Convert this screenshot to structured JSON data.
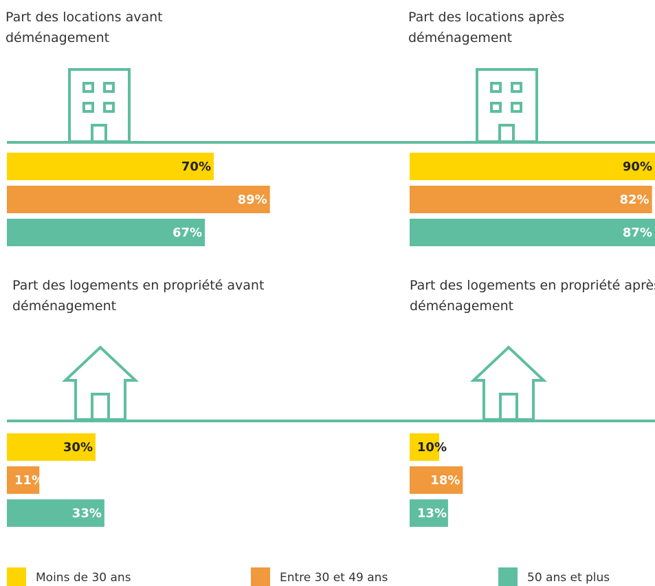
{
  "chart_data": [
    {
      "type": "bar",
      "title": "Part des locations avant déménagement",
      "values": [
        70,
        89,
        67
      ],
      "value_labels": [
        "70%",
        "89%",
        "67%"
      ],
      "xlim": [
        0,
        100
      ]
    },
    {
      "type": "bar",
      "title": "Part des locations après déménagement",
      "values": [
        90,
        82,
        87
      ],
      "value_labels": [
        "90%",
        "82%",
        "87%"
      ],
      "xlim": [
        0,
        100
      ]
    },
    {
      "type": "bar",
      "title": "Part des logements en propriété avant déménagement",
      "values": [
        30,
        11,
        33
      ],
      "value_labels": [
        "30%",
        "11%",
        "33%"
      ],
      "xlim": [
        0,
        100
      ]
    },
    {
      "type": "bar",
      "title": "Part des logements en propriété après déménagement",
      "values": [
        10,
        18,
        13
      ],
      "value_labels": [
        "10%",
        "18%",
        "13%"
      ],
      "xlim": [
        0,
        100
      ]
    }
  ],
  "legend": {
    "series": [
      {
        "name": "Moins de 30 ans",
        "color": "#ffd500"
      },
      {
        "name": "Entre 30 et 49 ans",
        "color": "#f0993d"
      },
      {
        "name": "50 ans et plus",
        "color": "#5fbea0"
      }
    ]
  }
}
